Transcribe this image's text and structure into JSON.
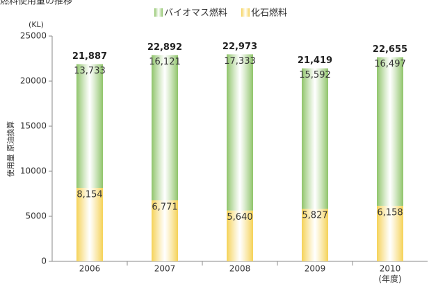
{
  "chart_data": {
    "type": "stacked_bar",
    "title": "燃料使用量の推移",
    "y_unit": "(KL)",
    "y_label": "使用量 原油換算",
    "x_unit": "(年度)",
    "categories": [
      "2006",
      "2007",
      "2008",
      "2009",
      "2010"
    ],
    "series": [
      {
        "name": "バイオマス燃料",
        "color": "#8fc46a",
        "values": [
          13733,
          16121,
          17333,
          15592,
          16497
        ],
        "value_labels": [
          "13,733",
          "16,121",
          "17,333",
          "15,592",
          "16,497"
        ]
      },
      {
        "name": "化石燃料",
        "color": "#f5d257",
        "values": [
          8154,
          6771,
          5640,
          5827,
          6158
        ],
        "value_labels": [
          "8,154",
          "6,771",
          "5,640",
          "5,827",
          "6,158"
        ]
      }
    ],
    "totals": [
      21887,
      22892,
      22973,
      21419,
      22655
    ],
    "total_labels": [
      "21,887",
      "22,892",
      "22,973",
      "21,419",
      "22,655"
    ],
    "ylim": [
      0,
      25000
    ],
    "yticks": [
      0,
      5000,
      10000,
      15000,
      20000,
      25000
    ]
  }
}
